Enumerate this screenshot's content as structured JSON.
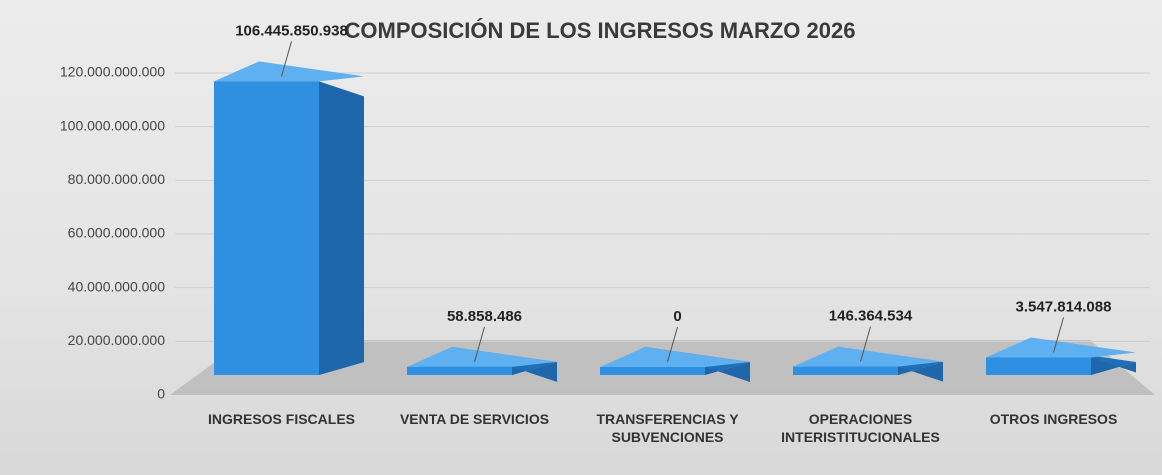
{
  "chart_data": {
    "type": "bar3d",
    "title": "COMPOSICIÓN DE LOS INGRESOS MARZO 2026",
    "categories": [
      "INGRESOS FISCALES",
      "VENTA DE SERVICIOS",
      "TRANSFERENCIAS Y SUBVENCIONES",
      "OPERACIONES INTERISTITUCIONALES",
      "OTROS INGRESOS"
    ],
    "values": [
      106445850938,
      58858486,
      0,
      146364534,
      3547814088
    ],
    "value_labels": [
      "106.445.850.938",
      "58.858.486",
      "0",
      "146.364.534",
      "3.547.814.088"
    ],
    "color": "#2f8fe0",
    "ylim": [
      0,
      120000000000
    ],
    "yticks": [
      0,
      {
        "value": 20000000000,
        "label": "20.000.000.000"
      },
      {
        "value": 40000000000,
        "label": "40.000.000.000"
      },
      {
        "value": 60000000000,
        "label": "60.000.000.000"
      },
      {
        "value": 80000000000,
        "label": "80.000.000.000"
      },
      {
        "value": 100000000000,
        "label": "100.000.000.000"
      },
      {
        "value": 120000000000,
        "label": "120.000.000.000"
      }
    ],
    "grid": true
  }
}
